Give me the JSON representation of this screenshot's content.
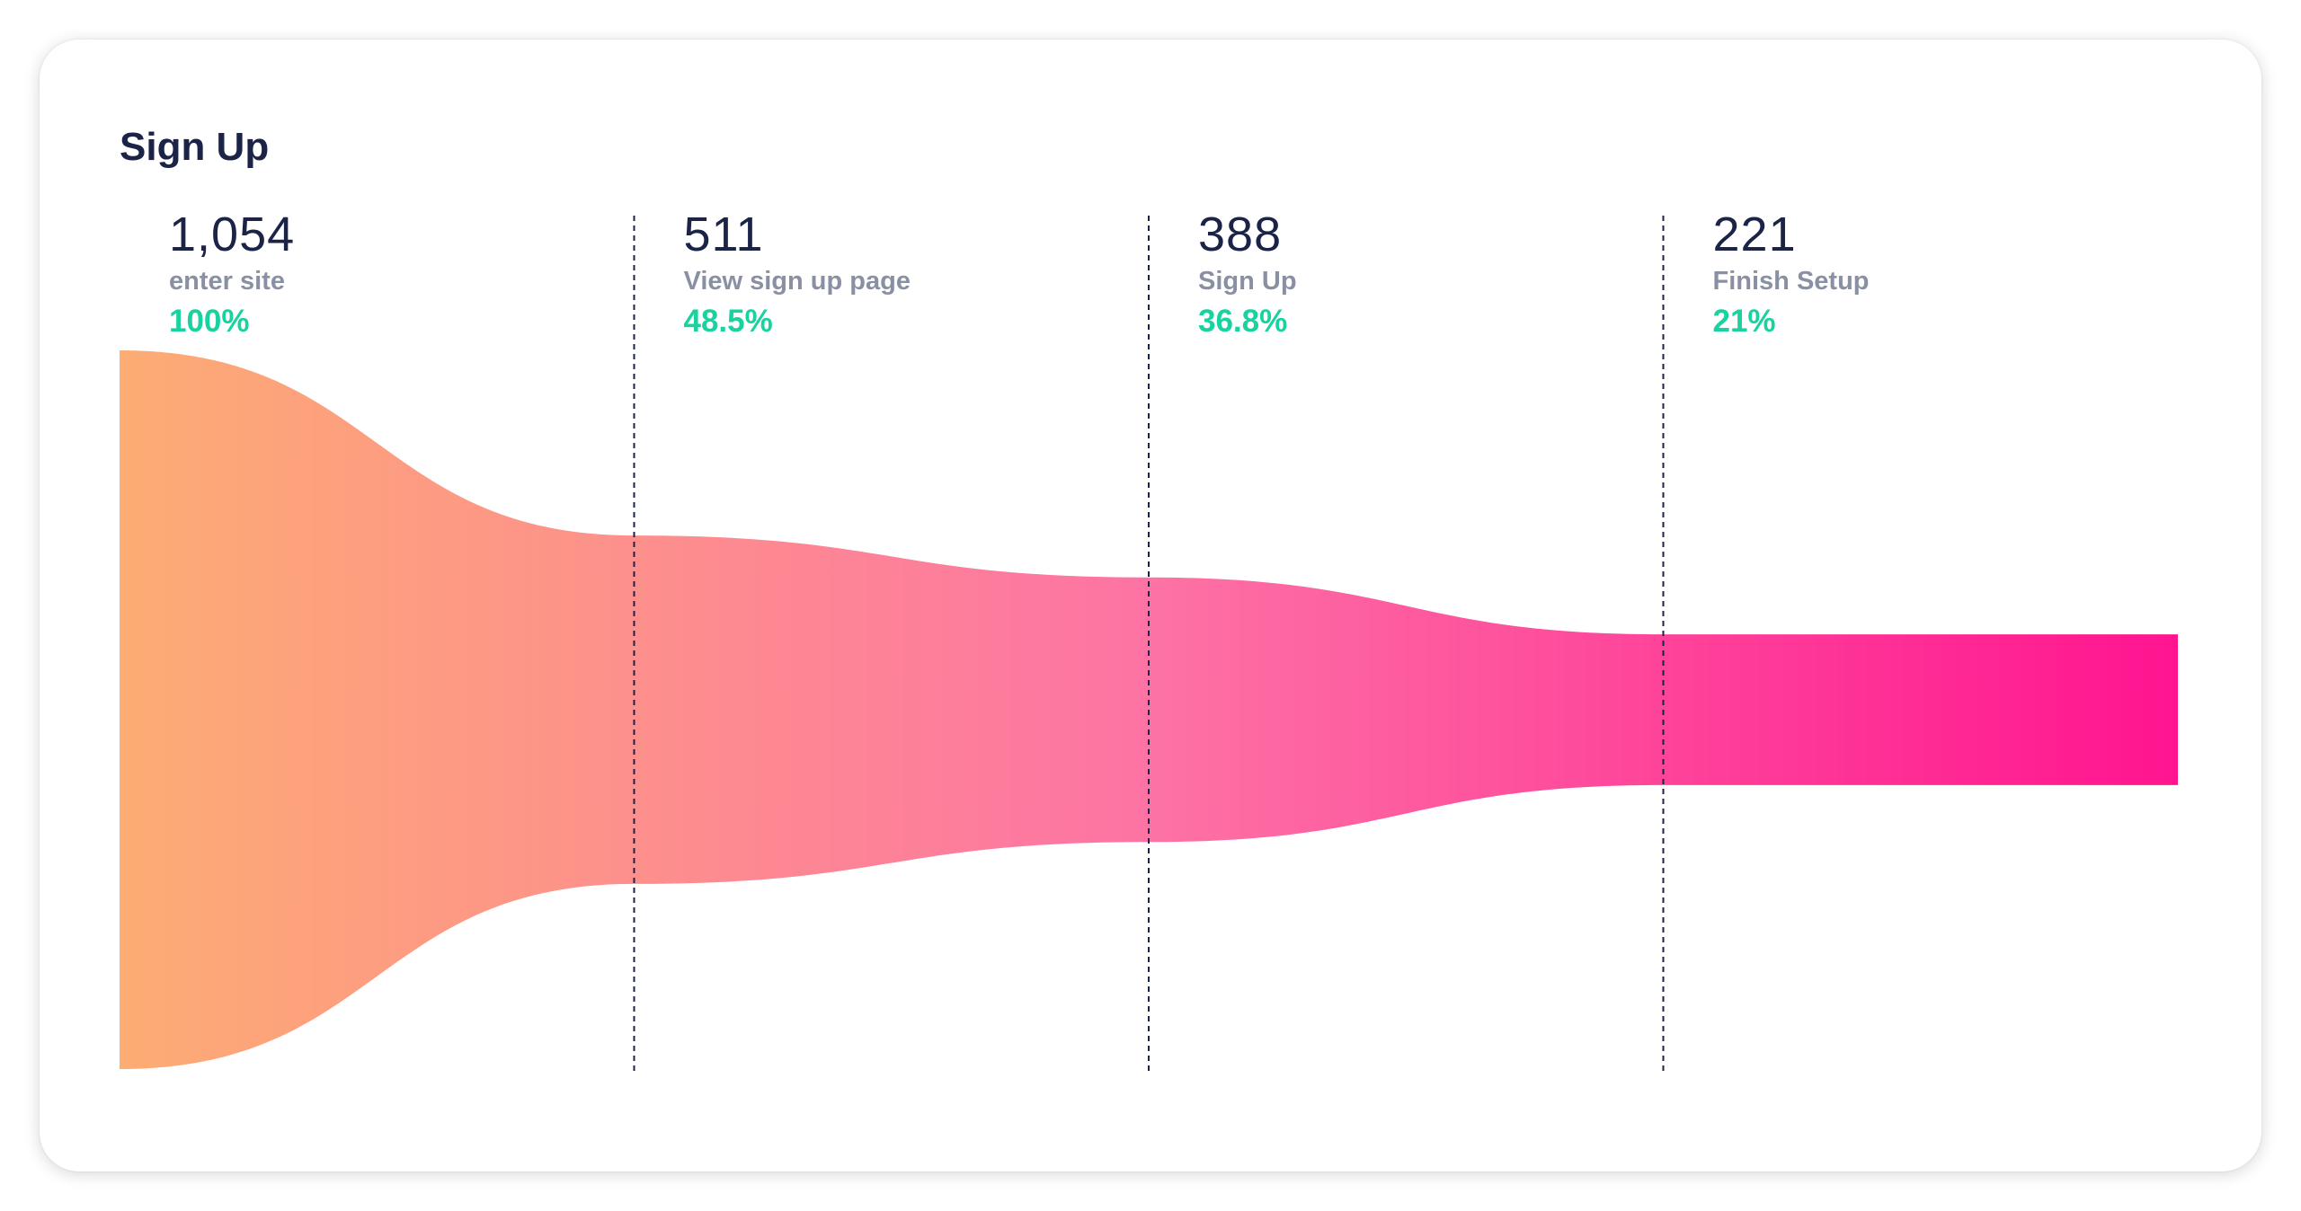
{
  "chart_data": {
    "type": "funnel",
    "title": "Sign Up",
    "stages": [
      {
        "label": "enter site",
        "value": 1054,
        "value_text": "1,054",
        "percent_text": "100%"
      },
      {
        "label": "View sign up page",
        "value": 511,
        "value_text": "511",
        "percent_text": "48.5%"
      },
      {
        "label": "Sign Up",
        "value": 388,
        "value_text": "388",
        "percent_text": "36.8%"
      },
      {
        "label": "Finish Setup",
        "value": 221,
        "value_text": "221",
        "percent_text": "21%"
      }
    ],
    "gradient": {
      "start": "#fdac74",
      "mid": "#fd73a4",
      "end": "#ff1490"
    },
    "percent_color": "#18d2a0",
    "divider_style": "dashed"
  }
}
